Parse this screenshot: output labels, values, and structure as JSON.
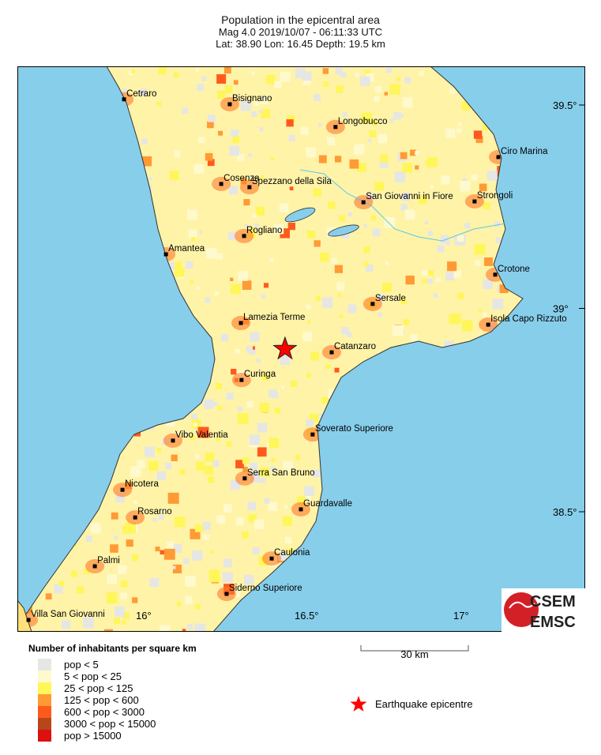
{
  "header": {
    "title": "Population in the epicentral area",
    "event_line": "Mag 4.0  2019/10/07 - 06:11:33 UTC",
    "location_line": "Lat: 38.90    Lon:  16.45     Depth:  19.5 km"
  },
  "map": {
    "colors": {
      "sea": "#87CEEB",
      "land_low": "#FFF7C0",
      "coast": "#333333"
    },
    "lon_ticks": [
      "16°",
      "16.5°",
      "17°"
    ],
    "lat_ticks": [
      "39.5°",
      "39°",
      "38.5°"
    ],
    "epicentre": {
      "lat": 38.9,
      "lon": 16.45,
      "color": "#FF0000"
    },
    "cities": [
      {
        "name": "Cetraro",
        "lat": 39.514,
        "lon": 15.943
      },
      {
        "name": "Bisignano",
        "lat": 39.502,
        "lon": 16.276
      },
      {
        "name": "Longobucco",
        "lat": 39.446,
        "lon": 16.609
      },
      {
        "name": "Ciro Marina",
        "lat": 39.372,
        "lon": 17.122
      },
      {
        "name": "Cosenza",
        "lat": 39.306,
        "lon": 16.249
      },
      {
        "name": "Spezzano della Sila",
        "lat": 39.298,
        "lon": 16.338
      },
      {
        "name": "San Giovanni in Fiore",
        "lat": 39.261,
        "lon": 16.697
      },
      {
        "name": "Strongoli",
        "lat": 39.263,
        "lon": 17.047
      },
      {
        "name": "Rogliano",
        "lat": 39.178,
        "lon": 16.321
      },
      {
        "name": "Amantea",
        "lat": 39.133,
        "lon": 16.075
      },
      {
        "name": "Crotone",
        "lat": 39.083,
        "lon": 17.112
      },
      {
        "name": "Sersale",
        "lat": 39.011,
        "lon": 16.726
      },
      {
        "name": "Isola Capo Rizzuto",
        "lat": 38.96,
        "lon": 17.09
      },
      {
        "name": "Lamezia Terme",
        "lat": 38.964,
        "lon": 16.311
      },
      {
        "name": "Catanzaro",
        "lat": 38.892,
        "lon": 16.597
      },
      {
        "name": "Curinga",
        "lat": 38.824,
        "lon": 16.313
      },
      {
        "name": "Soverato Superiore",
        "lat": 38.69,
        "lon": 16.537
      },
      {
        "name": "Vibo Valentia",
        "lat": 38.675,
        "lon": 16.097
      },
      {
        "name": "Nicotera",
        "lat": 38.554,
        "lon": 15.938
      },
      {
        "name": "Serra San Bruno",
        "lat": 38.582,
        "lon": 16.323
      },
      {
        "name": "Guardavalle",
        "lat": 38.506,
        "lon": 16.5
      },
      {
        "name": "Rosarno",
        "lat": 38.486,
        "lon": 15.978
      },
      {
        "name": "Caulonia",
        "lat": 38.385,
        "lon": 16.408
      },
      {
        "name": "Palmi",
        "lat": 38.366,
        "lon": 15.851
      },
      {
        "name": "Siderno Superiore",
        "lat": 38.298,
        "lon": 16.266
      },
      {
        "name": "Villa San Giovanni",
        "lat": 38.234,
        "lon": 15.642
      }
    ],
    "scale_bar": "30 km",
    "logo": {
      "top": "CSEM",
      "bottom": "EMSC"
    }
  },
  "legend": {
    "title": "Number of inhabitants per square km",
    "items": [
      {
        "label": "pop < 5",
        "color": "#E6E6E4"
      },
      {
        "label": "5 < pop < 25",
        "color": "#FFFACD"
      },
      {
        "label": "25 < pop < 125",
        "color": "#FFF65A"
      },
      {
        "label": "125 < pop < 600",
        "color": "#FF9A35"
      },
      {
        "label": "600 < pop < 3000",
        "color": "#FF5A1E"
      },
      {
        "label": "3000 < pop < 15000",
        "color": "#B8461B"
      },
      {
        "label": "pop > 15000",
        "color": "#DD1010"
      }
    ],
    "epicentre_label": "Earthquake epicentre"
  }
}
